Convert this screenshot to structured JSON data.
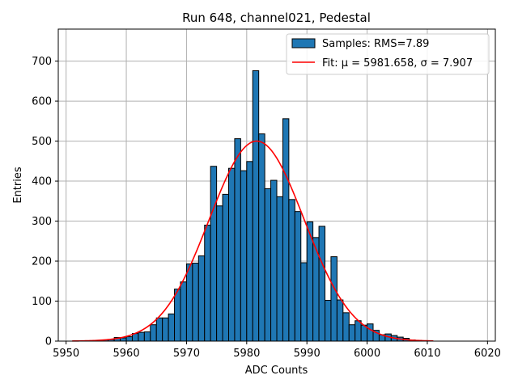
{
  "chart_data": {
    "type": "bar",
    "title": "Run 648, channel021, Pedestal",
    "xlabel": "ADC Counts",
    "ylabel": "Entries",
    "xlim": [
      5948.7,
      6021.3
    ],
    "ylim": [
      0,
      780
    ],
    "xticks": [
      5950,
      5960,
      5970,
      5980,
      5990,
      6000,
      6010,
      6020
    ],
    "yticks": [
      0,
      100,
      200,
      300,
      400,
      500,
      600,
      700
    ],
    "grid": true,
    "legend_position": "top-right",
    "bar_color": "#1f77b4",
    "fit_color": "#ff0000",
    "bins": {
      "start": 5956.0,
      "width": 1.0,
      "counts": [
        3,
        4,
        9,
        8,
        11,
        19,
        22,
        23,
        41,
        58,
        58,
        68,
        130,
        148,
        193,
        195,
        213,
        290,
        437,
        338,
        367,
        432,
        506,
        426,
        449,
        676,
        518,
        381,
        402,
        361,
        556,
        354,
        324,
        196,
        298,
        259,
        287,
        102,
        211,
        103,
        71,
        41,
        51,
        40,
        43,
        27,
        16,
        18,
        14,
        10,
        7,
        3,
        2
      ]
    },
    "fit": {
      "mu": 5981.658,
      "sigma": 7.907,
      "amplitude": 500,
      "x_range": [
        5951.0,
        6011.0
      ]
    },
    "series": [
      {
        "name": "Samples: RMS=7.89"
      },
      {
        "name": "Fit: μ = 5981.658, σ = 7.907"
      }
    ]
  }
}
